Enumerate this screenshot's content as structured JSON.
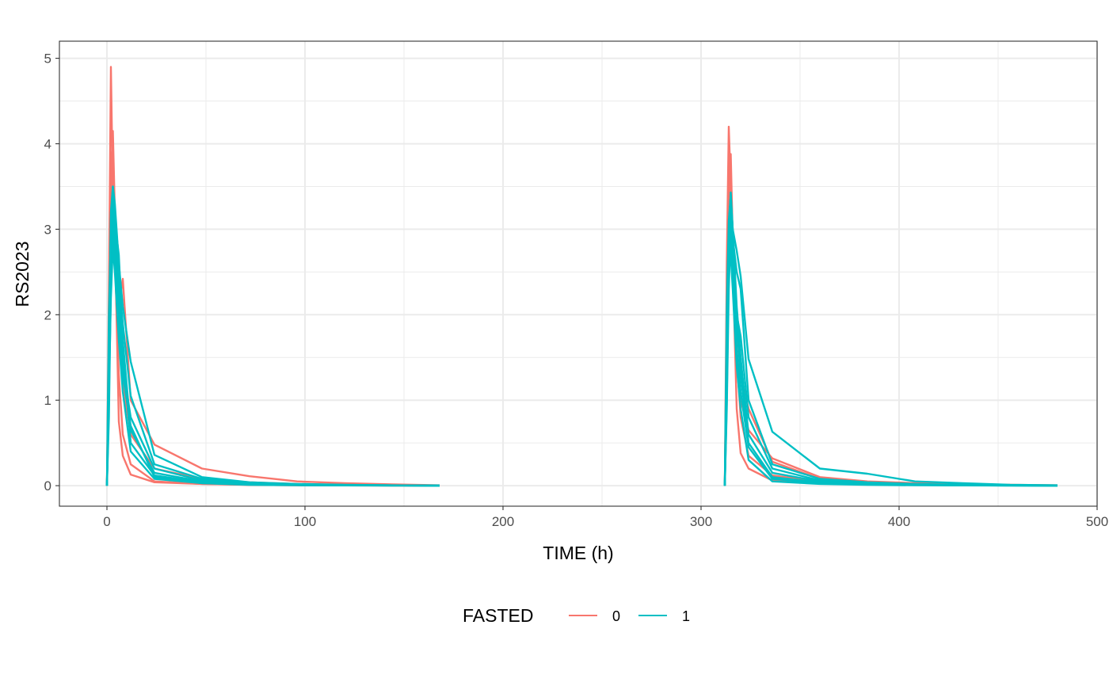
{
  "chart_data": {
    "type": "line",
    "title": "",
    "xlabel": "TIME (h)",
    "ylabel": "RS2023",
    "xlim": [
      -24,
      500
    ],
    "ylim": [
      -0.24,
      5.2
    ],
    "xticks": [
      0,
      100,
      200,
      300,
      400,
      500
    ],
    "yticks": [
      0,
      1,
      2,
      3,
      4,
      5
    ],
    "xtick_labels": [
      "0",
      "100",
      "200",
      "300",
      "400",
      "500"
    ],
    "ytick_labels": [
      "0",
      "1",
      "2",
      "3",
      "4",
      "5"
    ],
    "grid": true,
    "legend": {
      "title": "FASTED",
      "position": "bottom",
      "entries": [
        {
          "label": "0",
          "color": "#F8766D"
        },
        {
          "label": "1",
          "color": "#00BFC4"
        }
      ]
    },
    "series": [
      {
        "group": "0",
        "color": "#F8766D",
        "x": [
          0,
          1,
          2,
          3,
          4,
          6,
          8,
          12,
          24,
          48,
          72,
          96,
          120,
          144,
          168
        ],
        "y": [
          0,
          2.3,
          4.9,
          3.4,
          2.7,
          1.3,
          0.6,
          0.25,
          0.05,
          0.02,
          0.01,
          0.005,
          0.003,
          0.002,
          0.001
        ]
      },
      {
        "group": "0",
        "color": "#F8766D",
        "x": [
          0,
          1,
          2,
          3,
          4,
          6,
          8,
          12,
          24,
          48,
          72,
          96,
          120,
          144,
          168
        ],
        "y": [
          0,
          1.8,
          3.6,
          4.15,
          3.2,
          2.1,
          2.42,
          1.0,
          0.48,
          0.2,
          0.11,
          0.05,
          0.03,
          0.015,
          0.005
        ]
      },
      {
        "group": "0",
        "color": "#F8766D",
        "x": [
          0,
          1,
          2,
          3,
          4,
          6,
          8,
          12,
          24,
          48,
          72,
          96,
          120,
          144,
          168
        ],
        "y": [
          0,
          1.2,
          3.3,
          3.7,
          2.9,
          0.75,
          0.35,
          0.13,
          0.04,
          0.02,
          0.01,
          0.005,
          0.003,
          0.002,
          0.001
        ]
      },
      {
        "group": "0",
        "color": "#F8766D",
        "x": [
          0,
          1,
          2,
          3,
          4,
          6,
          8,
          12,
          24,
          48,
          72,
          96,
          120,
          144,
          168
        ],
        "y": [
          0,
          1.5,
          3.9,
          3.4,
          2.6,
          1.8,
          1.2,
          0.6,
          0.2,
          0.08,
          0.04,
          0.02,
          0.01,
          0.005,
          0.002
        ]
      },
      {
        "group": "1",
        "color": "#00BFC4",
        "x": [
          0,
          1,
          2,
          3,
          4,
          6,
          8,
          12,
          24,
          48,
          72,
          96,
          120,
          144,
          168
        ],
        "y": [
          0,
          1.4,
          3.1,
          3.5,
          3.3,
          2.6,
          2.1,
          1.45,
          0.36,
          0.1,
          0.04,
          0.02,
          0.01,
          0.005,
          0.002
        ]
      },
      {
        "group": "1",
        "color": "#00BFC4",
        "x": [
          0,
          1,
          2,
          3,
          4,
          6,
          8,
          12,
          24,
          48,
          72,
          96,
          120,
          144,
          168
        ],
        "y": [
          0,
          1.0,
          2.8,
          3.3,
          3.0,
          2.4,
          1.9,
          1.05,
          0.25,
          0.08,
          0.03,
          0.015,
          0.008,
          0.004,
          0.001
        ]
      },
      {
        "group": "1",
        "color": "#00BFC4",
        "x": [
          0,
          1,
          2,
          3,
          4,
          6,
          8,
          12,
          24,
          48,
          72,
          96,
          120,
          144,
          168
        ],
        "y": [
          0,
          1.6,
          3.2,
          3.5,
          2.8,
          2.0,
          1.4,
          0.8,
          0.2,
          0.06,
          0.03,
          0.015,
          0.008,
          0.004,
          0.001
        ]
      },
      {
        "group": "1",
        "color": "#00BFC4",
        "x": [
          0,
          1,
          2,
          3,
          4,
          6,
          8,
          12,
          24,
          48,
          72,
          96,
          120,
          144,
          168
        ],
        "y": [
          0,
          2.0,
          3.0,
          3.4,
          3.1,
          2.7,
          1.7,
          0.65,
          0.15,
          0.05,
          0.02,
          0.01,
          0.005,
          0.003,
          0.001
        ]
      },
      {
        "group": "1",
        "color": "#00BFC4",
        "x": [
          0,
          1,
          2,
          3,
          4,
          6,
          8,
          12,
          24,
          48,
          72,
          96,
          120,
          144,
          168
        ],
        "y": [
          0,
          0.8,
          2.4,
          3.1,
          2.9,
          2.2,
          1.6,
          0.5,
          0.12,
          0.04,
          0.02,
          0.01,
          0.005,
          0.002,
          0.001
        ]
      },
      {
        "group": "1",
        "color": "#00BFC4",
        "x": [
          0,
          1,
          2,
          3,
          4,
          6,
          8,
          12,
          24,
          48,
          72,
          96,
          120,
          144,
          168
        ],
        "y": [
          0,
          1.3,
          2.9,
          3.0,
          2.6,
          1.9,
          1.3,
          0.7,
          0.1,
          0.03,
          0.015,
          0.008,
          0.004,
          0.002,
          0.001
        ]
      },
      {
        "group": "1",
        "color": "#00BFC4",
        "x": [
          0,
          1,
          2,
          3,
          4,
          6,
          8,
          12,
          24,
          48,
          72,
          96,
          120,
          144,
          168
        ],
        "y": [
          0,
          1.1,
          2.2,
          2.8,
          2.5,
          1.7,
          1.1,
          0.4,
          0.08,
          0.03,
          0.01,
          0.005,
          0.003,
          0.002,
          0.001
        ]
      },
      {
        "group": "0",
        "color": "#F8766D",
        "x": [
          312,
          313,
          314,
          315,
          316,
          318,
          320,
          324,
          336,
          360,
          384,
          408,
          432,
          456,
          480
        ],
        "y": [
          0,
          2.6,
          4.2,
          3.5,
          2.6,
          0.9,
          0.38,
          0.2,
          0.06,
          0.03,
          0.02,
          0.01,
          0.005,
          0.003,
          0.002
        ]
      },
      {
        "group": "0",
        "color": "#F8766D",
        "x": [
          312,
          313,
          314,
          315,
          316,
          318,
          320,
          324,
          336,
          360,
          384,
          408,
          432,
          456,
          480
        ],
        "y": [
          0,
          2.2,
          3.98,
          3.1,
          2.5,
          1.6,
          1.0,
          0.65,
          0.32,
          0.1,
          0.05,
          0.03,
          0.02,
          0.01,
          0.005
        ]
      },
      {
        "group": "0",
        "color": "#F8766D",
        "x": [
          312,
          313,
          314,
          315,
          316,
          318,
          320,
          324,
          336,
          360,
          384,
          408,
          432,
          456,
          480
        ],
        "y": [
          0,
          1.7,
          3.4,
          3.88,
          2.9,
          1.5,
          0.8,
          0.35,
          0.12,
          0.05,
          0.03,
          0.02,
          0.01,
          0.005,
          0.002
        ]
      },
      {
        "group": "0",
        "color": "#F8766D",
        "x": [
          312,
          313,
          314,
          315,
          316,
          318,
          320,
          324,
          336,
          360,
          384,
          408,
          432,
          456,
          480
        ],
        "y": [
          0,
          1.3,
          3.1,
          3.5,
          2.7,
          1.9,
          1.3,
          0.9,
          0.28,
          0.08,
          0.04,
          0.02,
          0.01,
          0.005,
          0.002
        ]
      },
      {
        "group": "1",
        "color": "#00BFC4",
        "x": [
          312,
          313,
          314,
          315,
          316,
          318,
          320,
          324,
          336,
          360,
          384,
          408,
          432,
          456,
          480
        ],
        "y": [
          0,
          1.9,
          3.0,
          3.43,
          3.0,
          2.75,
          2.45,
          1.48,
          0.63,
          0.2,
          0.14,
          0.05,
          0.03,
          0.01,
          0.005
        ]
      },
      {
        "group": "1",
        "color": "#00BFC4",
        "x": [
          312,
          313,
          314,
          315,
          316,
          318,
          320,
          324,
          336,
          360,
          384,
          408,
          432,
          456,
          480
        ],
        "y": [
          0,
          1.0,
          2.6,
          3.3,
          2.9,
          2.5,
          2.3,
          1.0,
          0.25,
          0.08,
          0.04,
          0.02,
          0.01,
          0.005,
          0.002
        ]
      },
      {
        "group": "1",
        "color": "#00BFC4",
        "x": [
          312,
          313,
          314,
          315,
          316,
          318,
          320,
          324,
          336,
          360,
          384,
          408,
          432,
          456,
          480
        ],
        "y": [
          0,
          1.5,
          2.9,
          3.2,
          2.7,
          2.0,
          1.75,
          0.8,
          0.2,
          0.06,
          0.03,
          0.015,
          0.008,
          0.004,
          0.001
        ]
      },
      {
        "group": "1",
        "color": "#00BFC4",
        "x": [
          312,
          313,
          314,
          315,
          316,
          318,
          320,
          324,
          336,
          360,
          384,
          408,
          432,
          456,
          480
        ],
        "y": [
          0,
          2.1,
          3.1,
          3.4,
          3.0,
          2.1,
          1.5,
          0.6,
          0.15,
          0.05,
          0.02,
          0.01,
          0.005,
          0.003,
          0.001
        ]
      },
      {
        "group": "1",
        "color": "#00BFC4",
        "x": [
          312,
          313,
          314,
          315,
          316,
          318,
          320,
          324,
          336,
          360,
          384,
          408,
          432,
          456,
          480
        ],
        "y": [
          0,
          0.9,
          2.3,
          3.0,
          2.8,
          1.9,
          1.3,
          0.5,
          0.1,
          0.04,
          0.02,
          0.01,
          0.005,
          0.002,
          0.001
        ]
      },
      {
        "group": "1",
        "color": "#00BFC4",
        "x": [
          312,
          313,
          314,
          315,
          316,
          318,
          320,
          324,
          336,
          360,
          384,
          408,
          432,
          456,
          480
        ],
        "y": [
          0,
          1.2,
          2.7,
          2.9,
          2.5,
          1.6,
          1.1,
          0.45,
          0.08,
          0.03,
          0.015,
          0.008,
          0.004,
          0.002,
          0.001
        ]
      },
      {
        "group": "1",
        "color": "#00BFC4",
        "x": [
          312,
          313,
          314,
          315,
          316,
          318,
          320,
          324,
          336,
          360,
          384,
          408,
          432,
          456,
          480
        ],
        "y": [
          0,
          1.6,
          2.5,
          2.7,
          2.3,
          1.4,
          0.9,
          0.3,
          0.05,
          0.02,
          0.01,
          0.005,
          0.003,
          0.002,
          0.001
        ]
      }
    ]
  }
}
